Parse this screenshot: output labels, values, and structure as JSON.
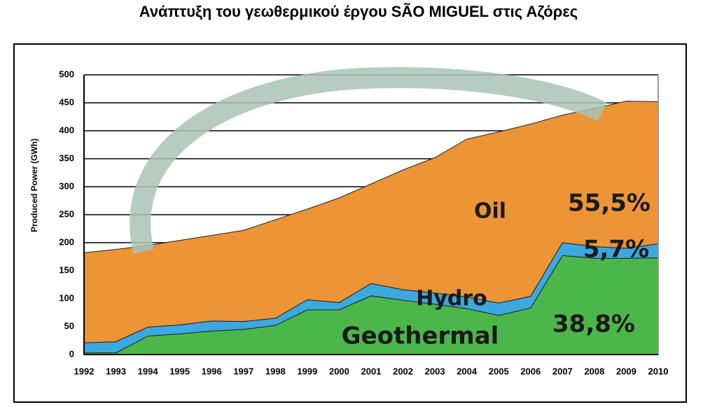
{
  "chart_data": {
    "type": "stacked-area",
    "title": "Ανάπτυξη του γεωθερμικού έργου SÃO MIGUEL στις Αζόρες",
    "y_label": "Produced Power (GWh)",
    "categories": [
      "1992",
      "1993",
      "1994",
      "1995",
      "1996",
      "1997",
      "1998",
      "1999",
      "2000",
      "2001",
      "2002",
      "2003",
      "2004",
      "2005",
      "2006",
      "2007",
      "2008",
      "2009",
      "2010"
    ],
    "series": [
      {
        "name": "Geothermal",
        "color": "#4bb74a",
        "annotation": "38,8%",
        "values": [
          3,
          3,
          33,
          37,
          42,
          45,
          52,
          80,
          80,
          105,
          97,
          90,
          82,
          70,
          83,
          177,
          172,
          172,
          173
        ]
      },
      {
        "name": "Hydro",
        "color": "#3ba9e0",
        "annotation": "5,7%",
        "values": [
          18,
          20,
          16,
          16,
          18,
          14,
          13,
          18,
          13,
          22,
          19,
          20,
          21,
          22,
          21,
          23,
          21,
          18,
          25
        ]
      },
      {
        "name": "Oil",
        "color": "#ec9436",
        "annotation": "55,5%",
        "values": [
          161,
          165,
          146,
          151,
          153,
          163,
          176,
          162,
          187,
          178,
          214,
          242,
          282,
          306,
          308,
          228,
          247,
          263,
          254
        ]
      }
    ],
    "ylim": [
      0,
      500
    ],
    "yticks": [
      0,
      50,
      100,
      150,
      200,
      250,
      300,
      350,
      400,
      450,
      500
    ],
    "grid": true
  }
}
